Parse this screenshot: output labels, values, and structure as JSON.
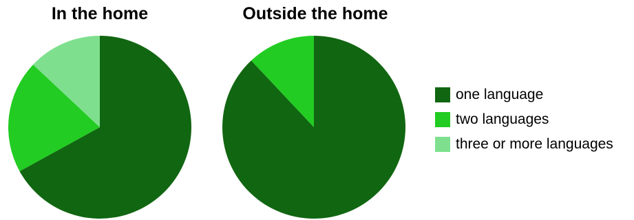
{
  "chart_data": [
    {
      "type": "pie",
      "title": "In the home",
      "categories": [
        "one language",
        "two languages",
        "three or more languages"
      ],
      "values": [
        67,
        20,
        13
      ],
      "colors": [
        "#116611",
        "#22cc22",
        "#7ee08e"
      ]
    },
    {
      "type": "pie",
      "title": "Outside the home",
      "categories": [
        "one language",
        "two languages",
        "three or more languages"
      ],
      "values": [
        88,
        12,
        0
      ],
      "colors": [
        "#116611",
        "#22cc22",
        "#7ee08e"
      ]
    }
  ],
  "legend": {
    "placement": "right",
    "items": [
      {
        "label": "one language",
        "color": "#116611"
      },
      {
        "label": "two languages",
        "color": "#22cc22"
      },
      {
        "label": "three or more languages",
        "color": "#7ee08e"
      }
    ]
  }
}
